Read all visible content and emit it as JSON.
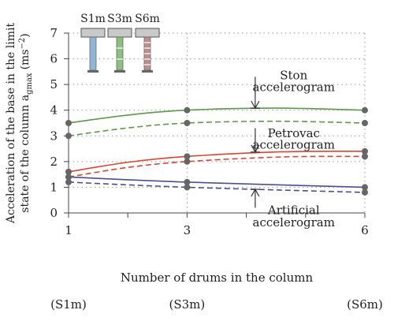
{
  "chart_data": {
    "type": "line",
    "xlabel": "Number of drums in the column",
    "ylabel_line1": "Acceleration of the base in the limit",
    "ylabel_line2_prefix": "state of the column a",
    "ylabel_sub": "gmax",
    "ylabel_unit": "(ms",
    "ylabel_sup": "−2",
    "ylabel_close": ")",
    "xlim": [
      1,
      6
    ],
    "ylim": [
      0,
      7
    ],
    "x_ticks": [
      1,
      3,
      6
    ],
    "y_ticks": [
      0,
      1,
      2,
      3,
      4,
      5,
      6,
      7
    ],
    "x_tick_labels": [
      "1",
      "3",
      "6"
    ],
    "y_tick_labels": [
      "0",
      "1",
      "2",
      "3",
      "4",
      "5",
      "6",
      "7"
    ],
    "column_labels": [
      "(S1m)",
      "(S3m)",
      "(S6m)"
    ],
    "grid": true,
    "series": [
      {
        "group": "Ston",
        "style": "solid",
        "color": "#5a9a48",
        "x": [
          1,
          3,
          6
        ],
        "y": [
          3.5,
          4.0,
          4.0
        ],
        "peak": [
          4.5,
          4.08
        ]
      },
      {
        "group": "Ston",
        "style": "dashed",
        "color": "#5a9a48",
        "x": [
          1,
          3,
          6
        ],
        "y": [
          3.0,
          3.5,
          3.5
        ],
        "peak": [
          4.5,
          3.57
        ]
      },
      {
        "group": "Petrovac",
        "style": "solid",
        "color": "#d9452e",
        "x": [
          1,
          3,
          6
        ],
        "y": [
          1.6,
          2.2,
          2.4
        ],
        "peak": [
          4.6,
          2.38
        ]
      },
      {
        "group": "Petrovac",
        "style": "dashed",
        "color": "#d9452e",
        "x": [
          1,
          3,
          6
        ],
        "y": [
          1.4,
          2.0,
          2.2
        ],
        "peak": [
          4.6,
          2.18
        ]
      },
      {
        "group": "Artificial",
        "style": "solid",
        "color": "#4a4f94",
        "x": [
          1,
          3,
          6
        ],
        "y": [
          1.4,
          1.2,
          1.0
        ],
        "peak": null
      },
      {
        "group": "Artificial",
        "style": "dashed",
        "color": "#4a4f94",
        "x": [
          1,
          3,
          6
        ],
        "y": [
          1.2,
          1.0,
          0.8
        ],
        "peak": null
      }
    ],
    "annotations": [
      {
        "lines": [
          "Ston",
          "accelerogram"
        ],
        "x": 4.8,
        "y": [
          5.2,
          4.75
        ],
        "arrow_x": 4.15,
        "arrow_from": 5.3,
        "arrow_to": 4.08,
        "arrow_dir": "down"
      },
      {
        "lines": [
          "Petrovac",
          "accelerogram"
        ],
        "x": 4.8,
        "y": [
          2.95,
          2.5
        ],
        "arrow_x": 4.15,
        "arrow_from": 3.3,
        "arrow_to": 2.37,
        "arrow_dir": "down"
      },
      {
        "lines": [
          "Artificial",
          "accelerogram"
        ],
        "x": 4.8,
        "y": [
          -0.05,
          -0.52
        ],
        "arrow_x": 4.15,
        "arrow_from": 0.2,
        "arrow_to": 0.92,
        "arrow_dir": "up"
      }
    ],
    "inset": {
      "labels": [
        "S1m",
        "S3m",
        "S6m"
      ],
      "colors": [
        "#8fb6d8",
        "#8fbf80",
        "#b98f8f"
      ]
    }
  }
}
